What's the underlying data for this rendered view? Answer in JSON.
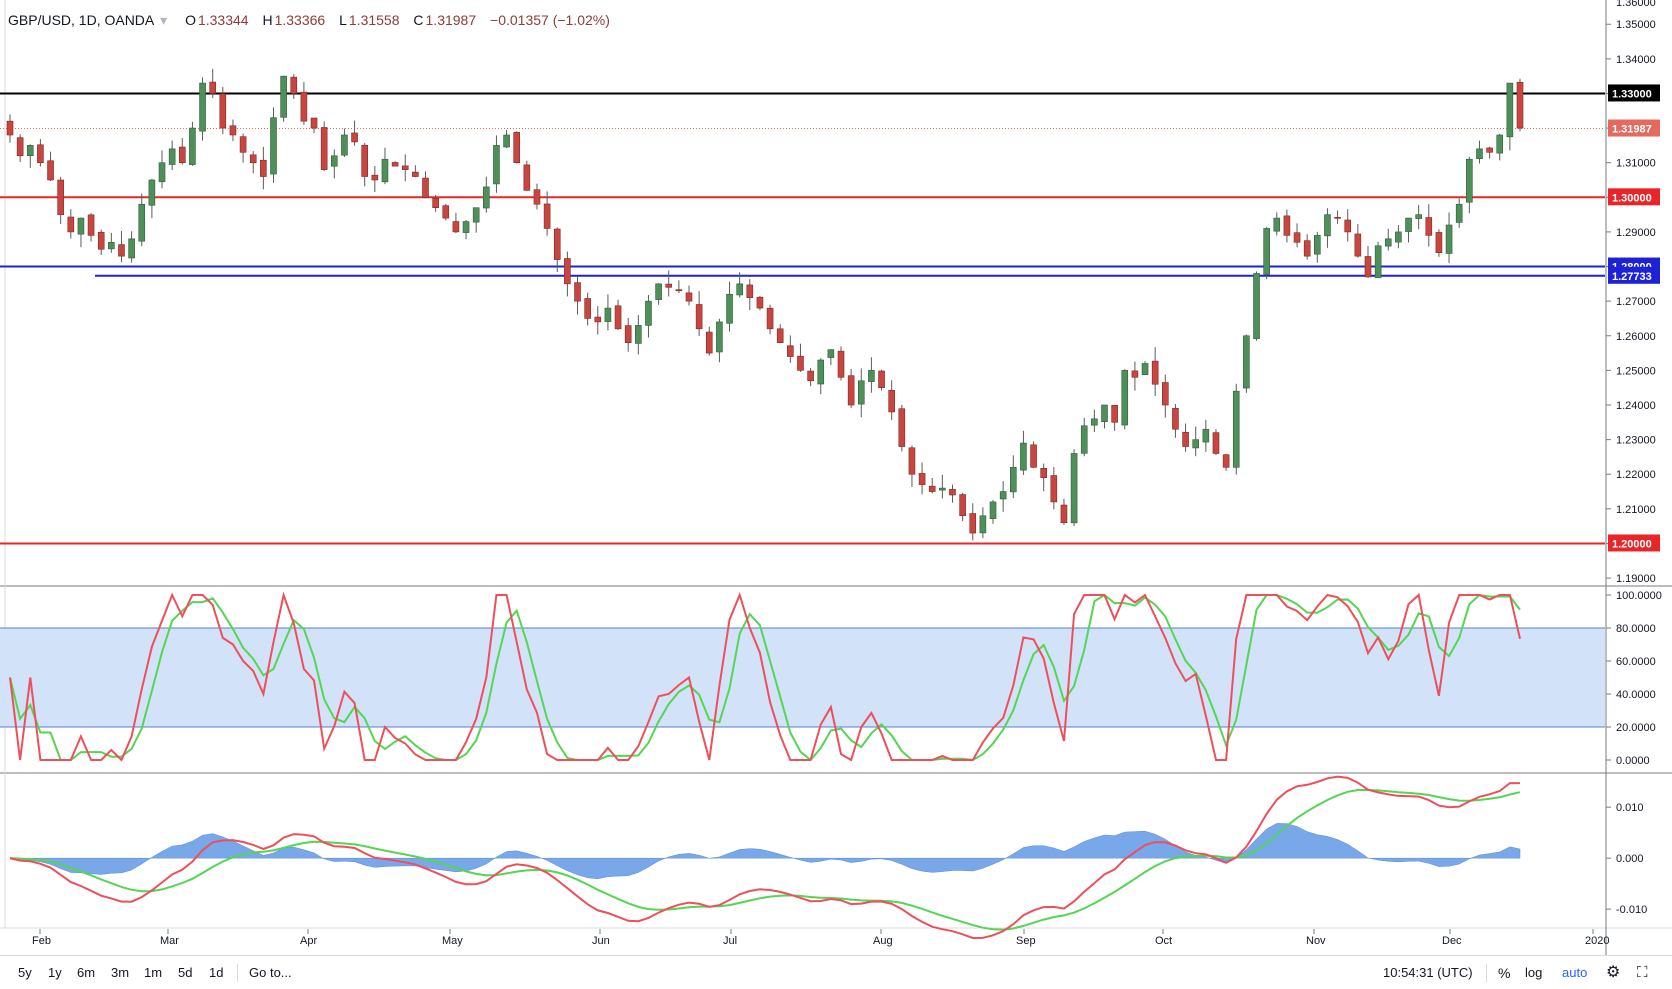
{
  "header": {
    "symbol_label": "GBP/USD, 1D, OANDA",
    "open_label": "O",
    "open": "1.33344",
    "high_label": "H",
    "high": "1.33366",
    "low_label": "L",
    "low": "1.31558",
    "close_label": "C",
    "close": "1.31987",
    "change": "−0.01357 (−1.02%)"
  },
  "colors": {
    "up": "#4e8f5a",
    "down": "#c8463f",
    "stoch_k": "#ee4f5a",
    "stoch_d": "#54d654",
    "macd_line": "#ee4f5a",
    "signal_line": "#54d654",
    "histogram": "#6a9ee8",
    "band_fill": "#d2e2f8",
    "blue_level": "#1d22d6",
    "red_level": "#e8262a",
    "black_level": "#000000"
  },
  "price_axis": {
    "ticks": [
      "1.35000",
      "1.34000",
      "1.33000",
      "1.32000",
      "1.31000",
      "1.30000",
      "1.29000",
      "1.28000",
      "1.27000",
      "1.26000",
      "1.25000",
      "1.24000",
      "1.23000",
      "1.22000",
      "1.21000",
      "1.20000",
      "1.19000"
    ],
    "values": [
      1.35,
      1.34,
      1.33,
      1.32,
      1.31,
      1.3,
      1.29,
      1.28,
      1.27,
      1.26,
      1.25,
      1.24,
      1.23,
      1.22,
      1.21,
      1.2,
      1.19
    ],
    "range": [
      1.188,
      1.357
    ],
    "top_cut_label": "1.36000"
  },
  "price_tags": [
    {
      "label": "1.33000",
      "value": 1.33,
      "bg": "#000000"
    },
    {
      "label": "1.31987",
      "value": 1.31987,
      "bg": "#e26a5e"
    },
    {
      "label": "1.30000",
      "value": 1.3,
      "bg": "#e8262a"
    },
    {
      "label": "1.28000",
      "value": 1.28,
      "bg": "#1d22d6"
    },
    {
      "label": "1.27733",
      "value": 1.27733,
      "bg": "#1d22d6"
    },
    {
      "label": "1.20000",
      "value": 1.2,
      "bg": "#e8262a"
    }
  ],
  "stoch_axis": {
    "ticks": [
      "100.0000",
      "80.0000",
      "60.0000",
      "40.0000",
      "20.0000",
      "0.0000"
    ],
    "values": [
      100,
      80,
      60,
      40,
      20,
      0
    ],
    "band": [
      20,
      80
    ]
  },
  "macd_axis": {
    "ticks": [
      "0.010",
      "0.000",
      "-0.010"
    ],
    "values": [
      0.01,
      0.0,
      -0.01
    ],
    "range": [
      -0.0135,
      0.0165
    ]
  },
  "time_axis": {
    "labels": [
      "Feb",
      "Mar",
      "Apr",
      "May",
      "Jun",
      "Jul",
      "Aug",
      "Sep",
      "Oct",
      "Nov",
      "Dec",
      "2020"
    ],
    "positions": [
      0.031,
      1,
      2,
      3,
      4,
      5,
      6,
      7,
      8,
      9,
      10,
      11
    ]
  },
  "chart_data": {
    "type": "candlestick",
    "series_close_approx": [
      1.318,
      1.312,
      1.315,
      1.31,
      1.305,
      1.295,
      1.29,
      1.294,
      1.289,
      1.285,
      1.287,
      1.283,
      1.288,
      1.298,
      1.305,
      1.31,
      1.314,
      1.31,
      1.32,
      1.333,
      1.33,
      1.32,
      1.318,
      1.313,
      1.31,
      1.306,
      1.323,
      1.335,
      1.33,
      1.322,
      1.32,
      1.308,
      1.312,
      1.318,
      1.316,
      1.306,
      1.305,
      1.311,
      1.309,
      1.308,
      1.306,
      1.3,
      1.297,
      1.294,
      1.29,
      1.293,
      1.297,
      1.303,
      1.315,
      1.318,
      1.31,
      1.302,
      1.298,
      1.291,
      1.282,
      1.275,
      1.27,
      1.265,
      1.264,
      1.268,
      1.262,
      1.258,
      1.263,
      1.27,
      1.275,
      1.274,
      1.273,
      1.27,
      1.262,
      1.255,
      1.264,
      1.272,
      1.275,
      1.271,
      1.268,
      1.262,
      1.258,
      1.254,
      1.25,
      1.247,
      1.253,
      1.256,
      1.248,
      1.24,
      1.247,
      1.25,
      1.245,
      1.238,
      1.228,
      1.22,
      1.217,
      1.215,
      1.216,
      1.214,
      1.208,
      1.203,
      1.208,
      1.212,
      1.215,
      1.222,
      1.229,
      1.222,
      1.219,
      1.212,
      1.206,
      1.226,
      1.234,
      1.236,
      1.24,
      1.235,
      1.25,
      1.248,
      1.252,
      1.246,
      1.24,
      1.233,
      1.228,
      1.23,
      1.233,
      1.226,
      1.222,
      1.244,
      1.26,
      1.278,
      1.291,
      1.294,
      1.289,
      1.287,
      1.283,
      1.289,
      1.295,
      1.294,
      1.29,
      1.283,
      1.277,
      1.286,
      1.288,
      1.29,
      1.294,
      1.295,
      1.289,
      1.284,
      1.292,
      1.298,
      1.311,
      1.314,
      1.313,
      1.318,
      1.333,
      1.32
    ],
    "horizontal_levels": [
      1.33,
      1.3,
      1.28,
      1.27733,
      1.2
    ],
    "stochastic": {
      "upper": 80,
      "lower": 20
    },
    "macd": {
      "zero": 0.0
    }
  },
  "footer": {
    "ranges": [
      "5y",
      "1y",
      "6m",
      "3m",
      "1m",
      "5d",
      "1d"
    ],
    "goto": "Go to...",
    "time": "10:54:31 (UTC)",
    "percent": "%",
    "log": "log",
    "auto": "auto"
  }
}
